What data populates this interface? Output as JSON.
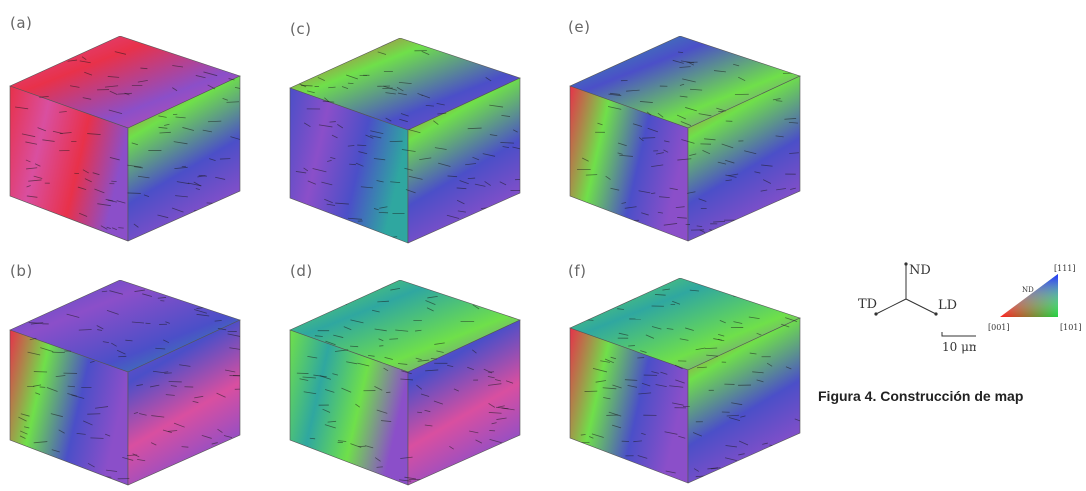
{
  "panels": [
    {
      "label": "(a)",
      "top": "pink",
      "left": "red",
      "right": "mix"
    },
    {
      "label": "(c)",
      "top": "mix",
      "left": "blue",
      "right": "mix"
    },
    {
      "label": "(e)",
      "top": "teal",
      "left": "mix",
      "right": "mix"
    },
    {
      "label": "(b)",
      "top": "blue",
      "left": "mix",
      "right": "purple"
    },
    {
      "label": "(d)",
      "top": "green",
      "left": "green",
      "right": "purple"
    },
    {
      "label": "(f)",
      "top": "green",
      "left": "mix",
      "right": "mix"
    }
  ],
  "axes": {
    "nd": "ND",
    "td": "TD",
    "ld": "LD",
    "scale": "10 μm"
  },
  "triangle": {
    "nd": "ND",
    "corner_111": "[111]",
    "corner_001": "[001]",
    "corner_101": "[101]"
  },
  "caption": "Figura 4. Construcción de map",
  "colors": {
    "red": "#e8314a",
    "pink": "#d94fa0",
    "blue": "#4b4fc8",
    "green": "#6fe04a",
    "teal": "#2fa7a0",
    "purple": "#8b4fc9",
    "grain_boundary": "#1a1a1a"
  }
}
